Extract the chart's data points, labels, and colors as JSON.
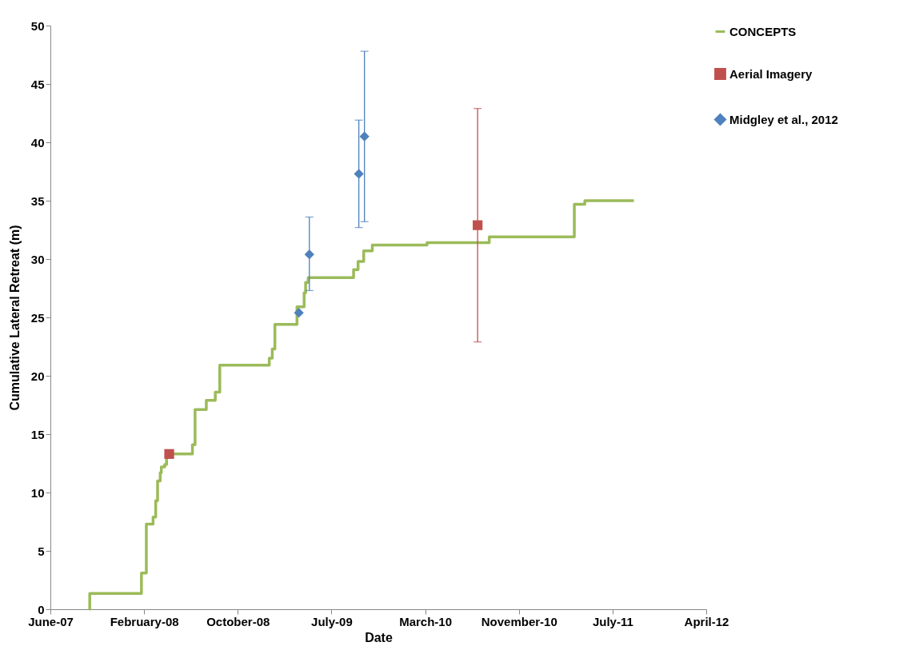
{
  "chart_data": {
    "type": "scatter",
    "xlabel": "Date",
    "ylabel": "Cumulative Lateral Retreat (m)",
    "xlim": [
      "2007-06-18",
      "2012-04-02"
    ],
    "xticks": [
      {
        "value": "2007-06-18",
        "label": "June-07"
      },
      {
        "value": "2008-02-23",
        "label": "February-08"
      },
      {
        "value": "2008-10-30",
        "label": "October-08"
      },
      {
        "value": "2009-07-07",
        "label": "July-09"
      },
      {
        "value": "2010-03-14",
        "label": "March-10"
      },
      {
        "value": "2010-11-19",
        "label": "November-10"
      },
      {
        "value": "2011-07-27",
        "label": "July-11"
      },
      {
        "value": "2012-04-02",
        "label": "April-12"
      }
    ],
    "ylim": [
      0,
      50
    ],
    "yticks": [
      0,
      5,
      10,
      15,
      20,
      25,
      30,
      35,
      40,
      45,
      50
    ],
    "grid": false,
    "legend": "right",
    "series": [
      {
        "name": "CONCEPTS",
        "type": "step",
        "color": "#9bbb59",
        "line_style": "solid",
        "marker": "none",
        "x": [
          "2007-09-30",
          "2007-10-01",
          "2008-02-16",
          "2008-02-29",
          "2008-03-18",
          "2008-03-25",
          "2008-03-30",
          "2008-04-06",
          "2008-04-09",
          "2008-04-18",
          "2008-04-23",
          "2008-07-01",
          "2008-07-08",
          "2008-08-07",
          "2008-08-31",
          "2008-09-12",
          "2009-01-22",
          "2009-01-30",
          "2009-02-06",
          "2009-04-06",
          "2009-04-25",
          "2009-04-29",
          "2009-05-06",
          "2009-09-04",
          "2009-09-16",
          "2009-10-01",
          "2009-10-24",
          "2010-03-19",
          "2010-09-01",
          "2011-04-16",
          "2011-05-14",
          "2011-09-22"
        ],
        "values": [
          0,
          1.35,
          3.1,
          7.3,
          7.9,
          9.3,
          11.0,
          11.7,
          12.2,
          12.4,
          13.3,
          14.1,
          17.1,
          17.9,
          18.6,
          20.9,
          21.5,
          22.3,
          24.4,
          25.9,
          27.1,
          28.0,
          28.4,
          29.1,
          29.8,
          30.7,
          31.2,
          31.4,
          31.9,
          34.7,
          35.0,
          35.0
        ]
      },
      {
        "name": "Aerial Imagery",
        "color": "#c0504d",
        "marker": "square",
        "x": [
          "2008-04-30",
          "2010-08-01"
        ],
        "values": [
          13.3,
          32.9
        ],
        "errors": [
          null,
          [
            22.9,
            42.9
          ]
        ]
      },
      {
        "name": "Midgley et al., 2012",
        "color": "#4f81bd",
        "marker": "diamond",
        "x": [
          "2009-04-11",
          "2009-05-09",
          "2009-09-18",
          "2009-10-03"
        ],
        "values": [
          25.4,
          30.4,
          37.3,
          40.5
        ],
        "errors": [
          null,
          [
            27.3,
            33.6
          ],
          [
            32.7,
            41.9
          ],
          [
            33.2,
            47.8
          ]
        ]
      }
    ]
  }
}
